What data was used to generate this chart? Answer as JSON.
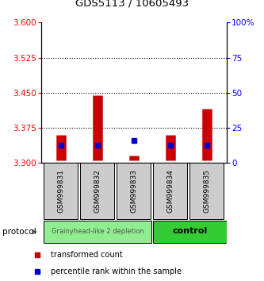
{
  "title": "GDS5113 / 10605493",
  "samples": [
    "GSM999831",
    "GSM999832",
    "GSM999833",
    "GSM999834",
    "GSM999835"
  ],
  "red_bottom": [
    3.305,
    3.305,
    3.305,
    3.305,
    3.305
  ],
  "red_top": [
    3.36,
    3.445,
    3.315,
    3.36,
    3.415
  ],
  "blue_y": [
    3.338,
    3.338,
    3.348,
    3.338,
    3.338
  ],
  "ylim_left": [
    3.3,
    3.6
  ],
  "ylim_right": [
    0,
    100
  ],
  "left_ticks": [
    3.3,
    3.375,
    3.45,
    3.525,
    3.6
  ],
  "right_ticks": [
    0,
    25,
    50,
    75,
    100
  ],
  "right_tick_labels": [
    "0",
    "25",
    "50",
    "75",
    "100%"
  ],
  "grid_lines": [
    3.375,
    3.45,
    3.525
  ],
  "left_color": "#ff0000",
  "right_color": "#0000ff",
  "red_color": "#cc0000",
  "blue_color": "#0000cc",
  "sample_bg": "#cccccc",
  "group1_color": "#90ee90",
  "group2_color": "#33cc33",
  "group1_label": "Grainyhead-like 2 depletion",
  "group2_label": "control",
  "protocol_label": "protocol",
  "legend_red": "transformed count",
  "legend_blue": "percentile rank within the sample"
}
